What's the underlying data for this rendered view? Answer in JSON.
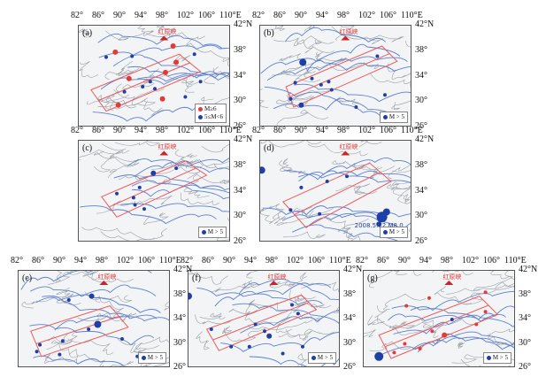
{
  "colors": {
    "quake_blue": "#1f3fa8",
    "quake_red": "#e53935",
    "line_red": "#ef5a5a",
    "river_blue": "#5b7fd1",
    "fault_gray": "#9aa0a8"
  },
  "axes_top_row": {
    "lon": [
      "82°",
      "86°",
      "90°",
      "94°",
      "98°",
      "102°",
      "106°",
      "110°E"
    ],
    "lat": [
      "42°N",
      "38°",
      "34°",
      "30°",
      "26°"
    ]
  },
  "axes_bottom_row": {
    "lon": [
      "82°",
      "86°",
      "90°",
      "94°",
      "98°",
      "102°",
      "106°",
      "110°E"
    ],
    "lat": [
      "42°N",
      "38°",
      "34°",
      "30°",
      "26°"
    ]
  },
  "place_label": "红原峡",
  "panels": [
    {
      "label": "(a)",
      "legend": [
        "M≥6",
        "5≤M<6"
      ]
    },
    {
      "label": "(b)",
      "legend": [
        "M > 5"
      ]
    },
    {
      "label": "(c)",
      "legend": [
        "M > 5"
      ]
    },
    {
      "label": "(d)",
      "legend": [
        "M > 5"
      ],
      "annotation": "2008.5.12 M8.0"
    },
    {
      "label": "(e)",
      "legend": [
        "M > 5"
      ]
    },
    {
      "label": "(f)",
      "legend": [
        "M > 5"
      ]
    },
    {
      "label": "(g)",
      "legend": [
        "M > 5"
      ]
    }
  ]
}
